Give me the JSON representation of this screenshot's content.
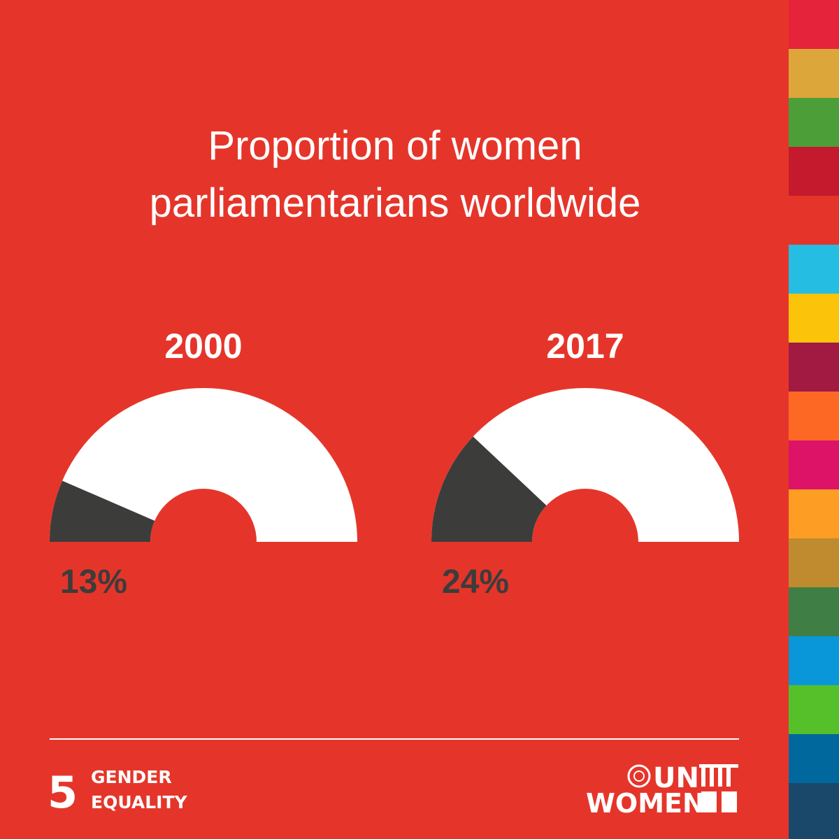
{
  "title": "Proportion of women parliamentarians worldwide",
  "chart_data": [
    {
      "type": "gauge",
      "title": "2000",
      "values": [
        13
      ],
      "value_labels": [
        "13%"
      ],
      "color": "#3c3c3b",
      "ylim": [
        0,
        100
      ]
    },
    {
      "type": "gauge",
      "title": "2017",
      "values": [
        24
      ],
      "value_labels": [
        "24%"
      ],
      "color": "#3c3c3b",
      "ylim": [
        0,
        100
      ]
    }
  ],
  "footer": {
    "goal_number": "5",
    "goal_name": [
      "GENDER",
      "EQUALITY"
    ],
    "logo": [
      "UN",
      "WOMEN"
    ]
  }
}
